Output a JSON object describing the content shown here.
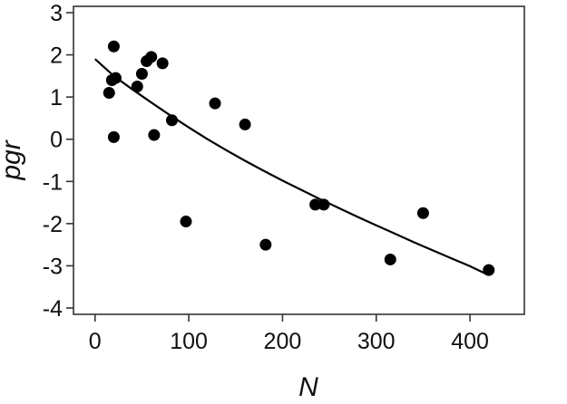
{
  "chart_data": {
    "type": "scatter",
    "xlabel": "N",
    "ylabel": "pgr",
    "xlim": [
      -23,
      458
    ],
    "ylim": [
      -4.15,
      3.15
    ],
    "xticks": [
      0,
      100,
      200,
      300,
      400
    ],
    "yticks": [
      -4,
      -3,
      -2,
      -1,
      0,
      1,
      2,
      3
    ],
    "grid": false,
    "legend": "none",
    "marker_color": "#000000",
    "series": [
      {
        "type": "scatter",
        "x": [
          15,
          18,
          20,
          20,
          22,
          45,
          50,
          55,
          60,
          63,
          72,
          82,
          97,
          128,
          160,
          182,
          235,
          244,
          315,
          350,
          420
        ],
        "y": [
          1.1,
          1.4,
          2.2,
          0.05,
          1.45,
          1.25,
          1.55,
          1.85,
          1.95,
          0.1,
          1.8,
          0.45,
          -1.95,
          0.85,
          0.35,
          -2.5,
          -1.55,
          -1.55,
          -2.85,
          -1.75,
          -3.1
        ]
      },
      {
        "type": "line",
        "x": [
          0,
          20,
          40,
          60,
          80,
          100,
          120,
          140,
          160,
          180,
          200,
          220,
          240,
          260,
          280,
          300,
          320,
          340,
          360,
          380,
          400,
          420
        ],
        "y": [
          1.9,
          1.5,
          1.18,
          0.87,
          0.57,
          0.28,
          0.0,
          -0.26,
          -0.51,
          -0.75,
          -0.98,
          -1.2,
          -1.42,
          -1.63,
          -1.84,
          -2.04,
          -2.24,
          -2.44,
          -2.63,
          -2.82,
          -3.01,
          -3.22
        ]
      }
    ]
  }
}
